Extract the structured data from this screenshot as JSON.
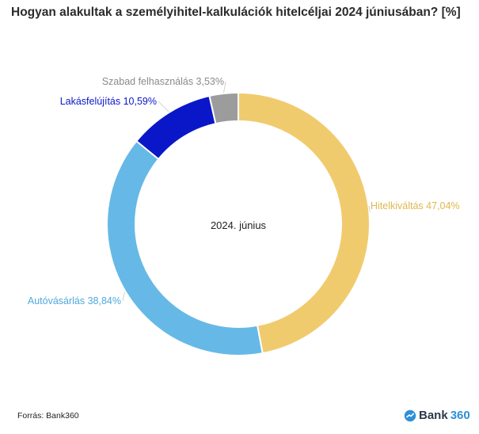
{
  "chart_data": {
    "type": "donut",
    "title": "Hogyan alakultak a személyihitel-kalkulációk hitelcéljai 2024 júniusában? [%]",
    "center_label": "2024. június",
    "slices": [
      {
        "label": "Hitelkiváltás",
        "value": 47.04,
        "value_text": "47,04%",
        "color": "#f0cb6e"
      },
      {
        "label": "Autóvásárlás",
        "value": 38.84,
        "value_text": "38,84%",
        "color": "#66b9e6"
      },
      {
        "label": "Lakásfelújítás",
        "value": 10.59,
        "value_text": "10,59%",
        "color": "#0a17c9"
      },
      {
        "label": "Szabad felhasználás",
        "value": 3.53,
        "value_text": "3,53%",
        "color": "#9c9c9c"
      }
    ]
  },
  "footer": {
    "source": "Forrás: Bank360",
    "brand_text": "Bank",
    "brand_num": "360"
  },
  "colors": {
    "title": "#2b2b2b",
    "brand_accent": "#2f8fd8",
    "label_gray": "#8a8a8a",
    "label_navy": "#0a17c9"
  }
}
